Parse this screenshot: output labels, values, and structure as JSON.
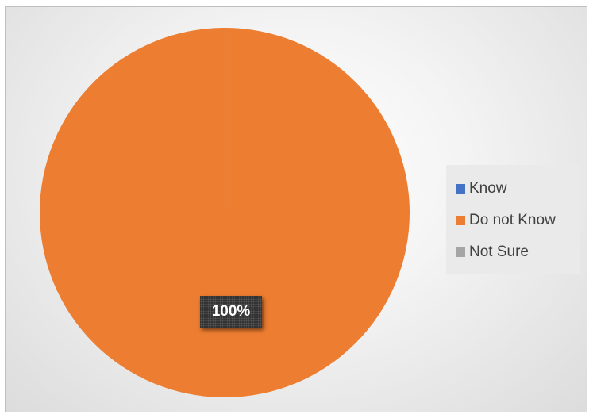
{
  "chart_data": {
    "type": "pie",
    "categories": [
      "Know",
      "Do not Know",
      "Not Sure"
    ],
    "values": [
      0,
      100,
      0
    ],
    "colors": [
      "#4472C4",
      "#ED7D31",
      "#A5A5A5"
    ],
    "data_labels": [
      "",
      "100%",
      ""
    ],
    "title": "",
    "legend_position": "right"
  }
}
